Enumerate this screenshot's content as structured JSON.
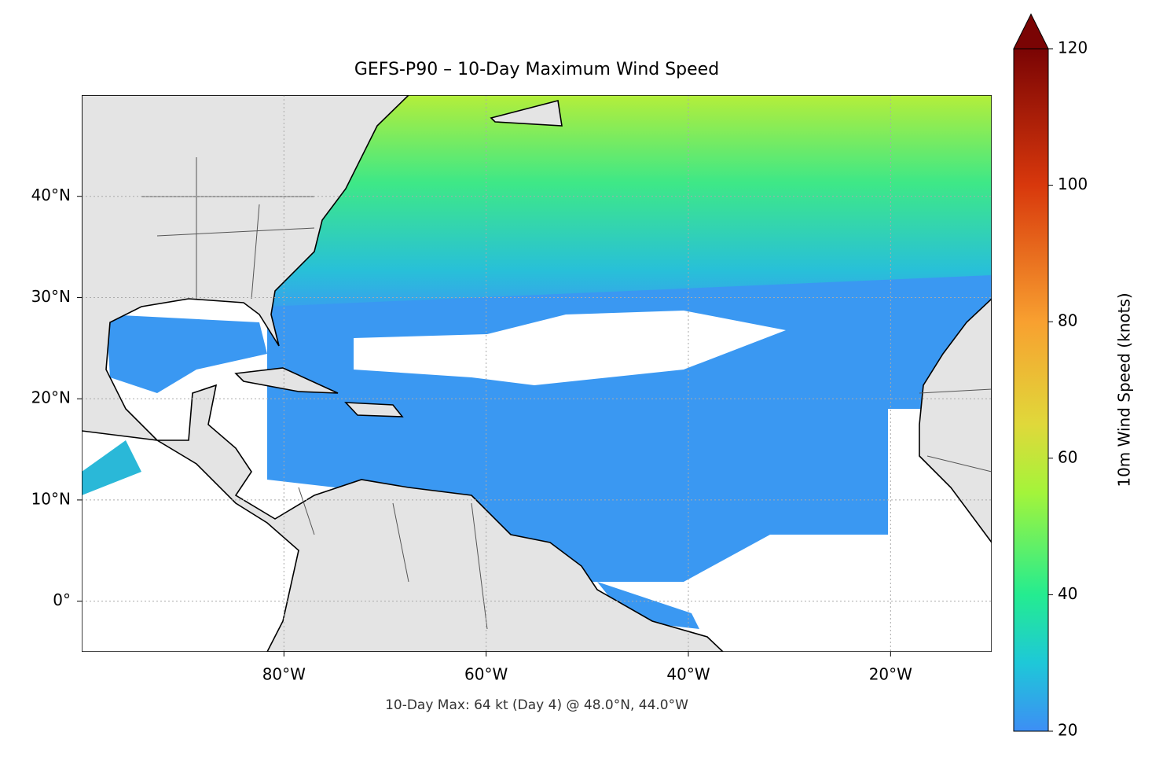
{
  "chart_data": {
    "type": "map",
    "title": "GEFS-P90 – 10-Day Maximum Wind Speed",
    "annotation": "10-Day Max: 64 kt (Day 4) @ 48.0°N, 44.0°W",
    "xlim": [
      -100,
      -10
    ],
    "ylim": [
      -5,
      50
    ],
    "xticks": [
      {
        "value": -80,
        "label": "80°W"
      },
      {
        "value": -60,
        "label": "60°W"
      },
      {
        "value": -40,
        "label": "40°W"
      },
      {
        "value": -20,
        "label": "20°W"
      }
    ],
    "yticks": [
      {
        "value": 0,
        "label": "0°"
      },
      {
        "value": 10,
        "label": "10°N"
      },
      {
        "value": 20,
        "label": "20°N"
      },
      {
        "value": 30,
        "label": "30°N"
      },
      {
        "value": 40,
        "label": "40°N"
      }
    ],
    "grid": true,
    "colorbar": {
      "label": "10m Wind Speed (knots)",
      "lim": [
        20,
        120
      ],
      "ticks": [
        20,
        40,
        60,
        80,
        100,
        120
      ],
      "extend": "max"
    }
  }
}
